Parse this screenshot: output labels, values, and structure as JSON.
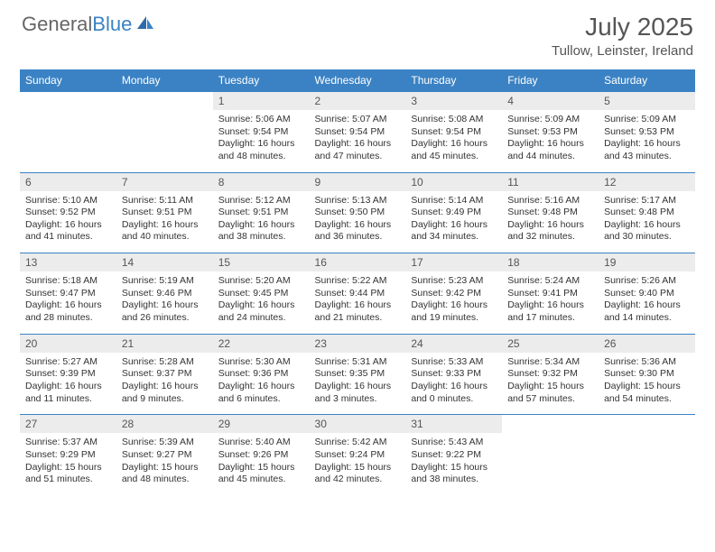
{
  "brand": {
    "part1": "General",
    "part2": "Blue"
  },
  "title": "July 2025",
  "location": "Tullow, Leinster, Ireland",
  "colors": {
    "header_bg": "#3b82c4",
    "header_text": "#ffffff",
    "daynum_bg": "#ececec",
    "border": "#3b82c4",
    "brand_blue": "#3b82c4"
  },
  "day_names": [
    "Sunday",
    "Monday",
    "Tuesday",
    "Wednesday",
    "Thursday",
    "Friday",
    "Saturday"
  ],
  "weeks": [
    [
      {
        "empty": true
      },
      {
        "empty": true
      },
      {
        "day": "1",
        "sunrise": "5:06 AM",
        "sunset": "9:54 PM",
        "daylight": "16 hours and 48 minutes."
      },
      {
        "day": "2",
        "sunrise": "5:07 AM",
        "sunset": "9:54 PM",
        "daylight": "16 hours and 47 minutes."
      },
      {
        "day": "3",
        "sunrise": "5:08 AM",
        "sunset": "9:54 PM",
        "daylight": "16 hours and 45 minutes."
      },
      {
        "day": "4",
        "sunrise": "5:09 AM",
        "sunset": "9:53 PM",
        "daylight": "16 hours and 44 minutes."
      },
      {
        "day": "5",
        "sunrise": "5:09 AM",
        "sunset": "9:53 PM",
        "daylight": "16 hours and 43 minutes."
      }
    ],
    [
      {
        "day": "6",
        "sunrise": "5:10 AM",
        "sunset": "9:52 PM",
        "daylight": "16 hours and 41 minutes."
      },
      {
        "day": "7",
        "sunrise": "5:11 AM",
        "sunset": "9:51 PM",
        "daylight": "16 hours and 40 minutes."
      },
      {
        "day": "8",
        "sunrise": "5:12 AM",
        "sunset": "9:51 PM",
        "daylight": "16 hours and 38 minutes."
      },
      {
        "day": "9",
        "sunrise": "5:13 AM",
        "sunset": "9:50 PM",
        "daylight": "16 hours and 36 minutes."
      },
      {
        "day": "10",
        "sunrise": "5:14 AM",
        "sunset": "9:49 PM",
        "daylight": "16 hours and 34 minutes."
      },
      {
        "day": "11",
        "sunrise": "5:16 AM",
        "sunset": "9:48 PM",
        "daylight": "16 hours and 32 minutes."
      },
      {
        "day": "12",
        "sunrise": "5:17 AM",
        "sunset": "9:48 PM",
        "daylight": "16 hours and 30 minutes."
      }
    ],
    [
      {
        "day": "13",
        "sunrise": "5:18 AM",
        "sunset": "9:47 PM",
        "daylight": "16 hours and 28 minutes."
      },
      {
        "day": "14",
        "sunrise": "5:19 AM",
        "sunset": "9:46 PM",
        "daylight": "16 hours and 26 minutes."
      },
      {
        "day": "15",
        "sunrise": "5:20 AM",
        "sunset": "9:45 PM",
        "daylight": "16 hours and 24 minutes."
      },
      {
        "day": "16",
        "sunrise": "5:22 AM",
        "sunset": "9:44 PM",
        "daylight": "16 hours and 21 minutes."
      },
      {
        "day": "17",
        "sunrise": "5:23 AM",
        "sunset": "9:42 PM",
        "daylight": "16 hours and 19 minutes."
      },
      {
        "day": "18",
        "sunrise": "5:24 AM",
        "sunset": "9:41 PM",
        "daylight": "16 hours and 17 minutes."
      },
      {
        "day": "19",
        "sunrise": "5:26 AM",
        "sunset": "9:40 PM",
        "daylight": "16 hours and 14 minutes."
      }
    ],
    [
      {
        "day": "20",
        "sunrise": "5:27 AM",
        "sunset": "9:39 PM",
        "daylight": "16 hours and 11 minutes."
      },
      {
        "day": "21",
        "sunrise": "5:28 AM",
        "sunset": "9:37 PM",
        "daylight": "16 hours and 9 minutes."
      },
      {
        "day": "22",
        "sunrise": "5:30 AM",
        "sunset": "9:36 PM",
        "daylight": "16 hours and 6 minutes."
      },
      {
        "day": "23",
        "sunrise": "5:31 AM",
        "sunset": "9:35 PM",
        "daylight": "16 hours and 3 minutes."
      },
      {
        "day": "24",
        "sunrise": "5:33 AM",
        "sunset": "9:33 PM",
        "daylight": "16 hours and 0 minutes."
      },
      {
        "day": "25",
        "sunrise": "5:34 AM",
        "sunset": "9:32 PM",
        "daylight": "15 hours and 57 minutes."
      },
      {
        "day": "26",
        "sunrise": "5:36 AM",
        "sunset": "9:30 PM",
        "daylight": "15 hours and 54 minutes."
      }
    ],
    [
      {
        "day": "27",
        "sunrise": "5:37 AM",
        "sunset": "9:29 PM",
        "daylight": "15 hours and 51 minutes."
      },
      {
        "day": "28",
        "sunrise": "5:39 AM",
        "sunset": "9:27 PM",
        "daylight": "15 hours and 48 minutes."
      },
      {
        "day": "29",
        "sunrise": "5:40 AM",
        "sunset": "9:26 PM",
        "daylight": "15 hours and 45 minutes."
      },
      {
        "day": "30",
        "sunrise": "5:42 AM",
        "sunset": "9:24 PM",
        "daylight": "15 hours and 42 minutes."
      },
      {
        "day": "31",
        "sunrise": "5:43 AM",
        "sunset": "9:22 PM",
        "daylight": "15 hours and 38 minutes."
      },
      {
        "empty": true
      },
      {
        "empty": true
      }
    ]
  ],
  "labels": {
    "sunrise": "Sunrise:",
    "sunset": "Sunset:",
    "daylight": "Daylight:"
  }
}
